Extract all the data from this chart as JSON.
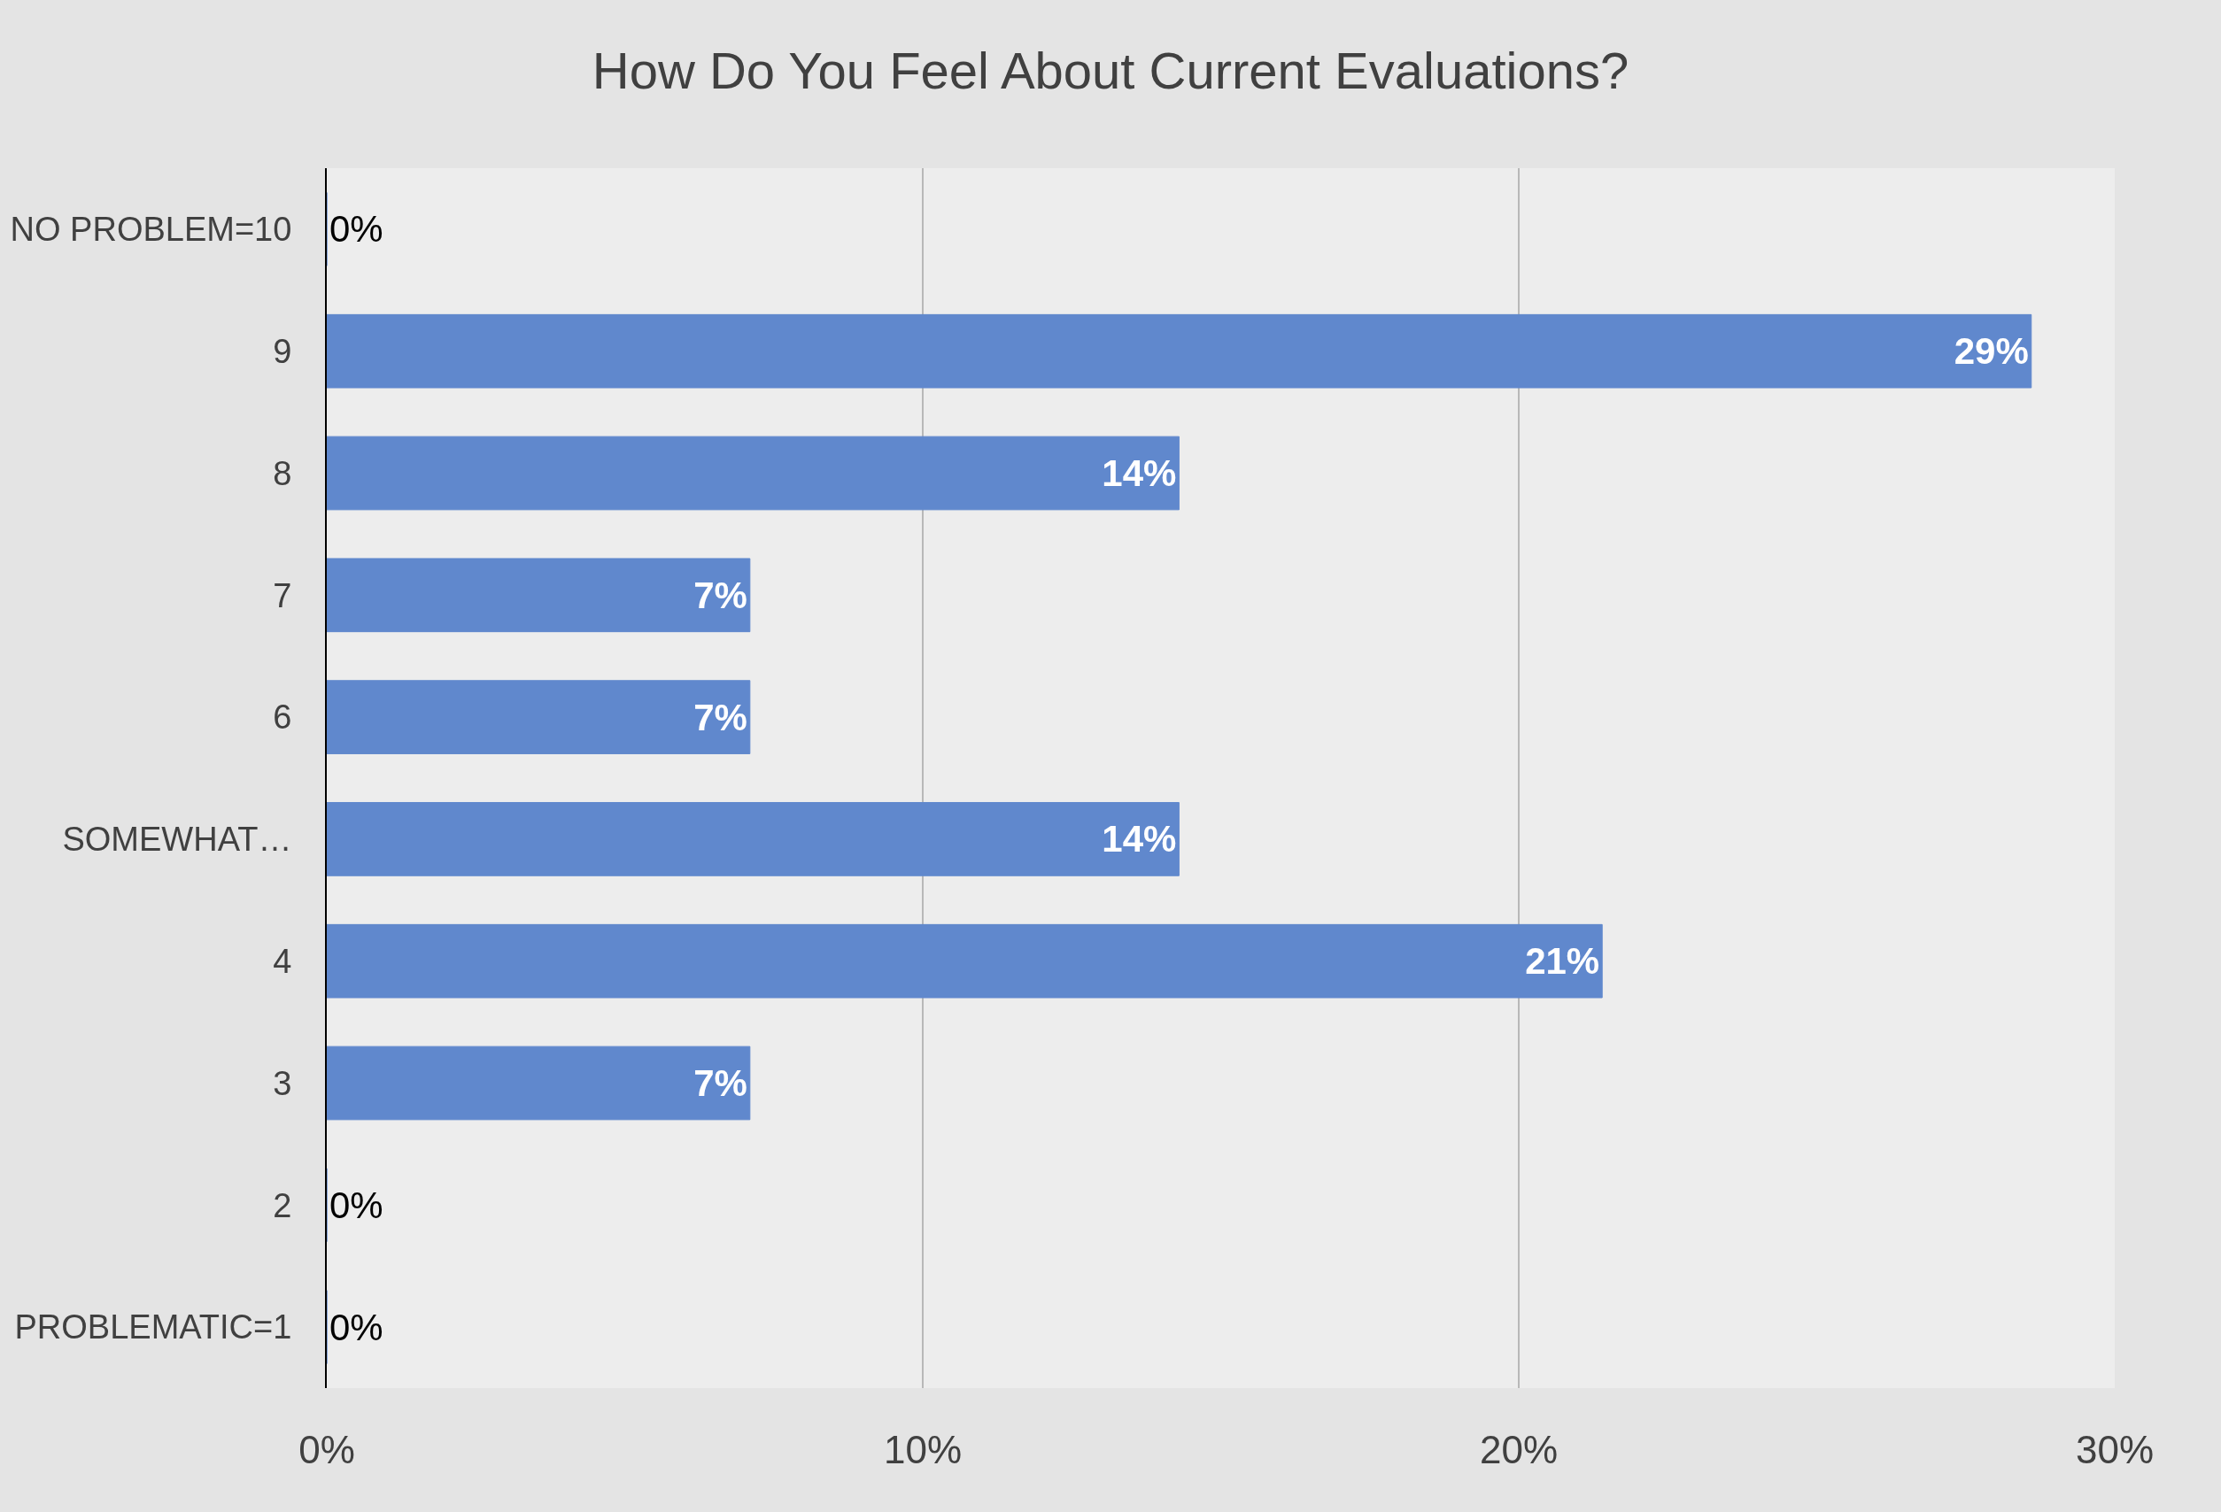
{
  "chart_data": {
    "type": "bar",
    "orientation": "horizontal",
    "title": "How Do You Feel About Current Evaluations?",
    "categories": [
      "NO PROBLEM=10",
      "9",
      "8",
      "7",
      "6",
      "SOMEWHAT…",
      "4",
      "3",
      "2",
      "PROBLEMATIC=1"
    ],
    "values": [
      0,
      28.6,
      14.3,
      7.1,
      7.1,
      14.3,
      21.4,
      7.1,
      0,
      0
    ],
    "value_labels": [
      "0%",
      "29%",
      "14%",
      "7%",
      "7%",
      "14%",
      "21%",
      "7%",
      "0%",
      "0%"
    ],
    "color": "#6088cd",
    "xlim": [
      0,
      30
    ],
    "xticks": [
      {
        "value": 0,
        "label": "0%"
      },
      {
        "value": 10,
        "label": "10%"
      },
      {
        "value": 20,
        "label": "20%"
      },
      {
        "value": 30,
        "label": "30%"
      }
    ],
    "grid": "x"
  }
}
